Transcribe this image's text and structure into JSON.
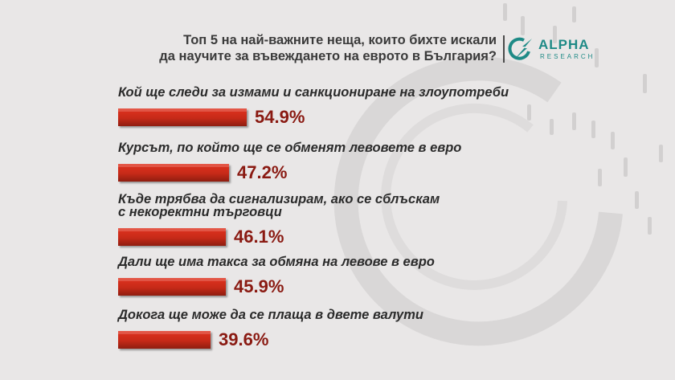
{
  "header": {
    "title_lines": [
      "Топ 5 на най-важните неща, които бихте искали",
      "да научите за въвеждането на еврото в България?"
    ],
    "logo": {
      "name": "ALPHA",
      "sub": "RESEARCH",
      "icon": "alpha-research-logo-icon",
      "color": "#1e8a86"
    }
  },
  "colors": {
    "bar": "#c62a18",
    "value_text": "#8a1a12",
    "background": "#e9e7e7"
  },
  "chart_data": {
    "type": "bar",
    "orientation": "horizontal",
    "unit": "%",
    "title": "Топ 5 на най-важните неща, които бихте искали да научите за въвеждането на еврото в България?",
    "categories": [
      [
        "Кой ще следи за измами и санкциониране на злоупотреби"
      ],
      [
        "Курсът, по който ще се обменят левовете в евро"
      ],
      [
        "Къде трябва да сигнализирам, ако се сблъскам",
        "с некоректни търговци"
      ],
      [
        "Дали ще има такса за обмяна на левове в евро"
      ],
      [
        "Докога ще може да се плаща в двете валути"
      ]
    ],
    "values": [
      54.9,
      47.2,
      46.1,
      45.9,
      39.6
    ],
    "value_labels": [
      "54.9%",
      "47.2%",
      "46.1%",
      "45.9%",
      "39.6%"
    ],
    "xlim": [
      0,
      100
    ],
    "grid": false,
    "legend": "none"
  }
}
